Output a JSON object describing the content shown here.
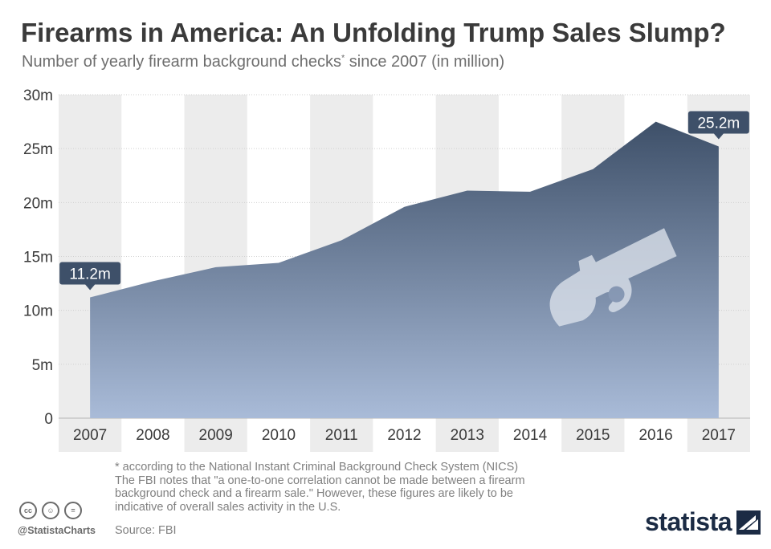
{
  "title": "Firearms in America: An Unfolding Trump Sales Slump?",
  "subtitle_main": "Number of yearly firearm background checks",
  "subtitle_star": "*",
  "subtitle_rest": " since 2007 (in million)",
  "chart_data": {
    "type": "area",
    "title": "Firearms in America: An Unfolding Trump Sales Slump?",
    "subtitle": "Number of yearly firearm background checks* since 2007 (in million)",
    "x": [
      "2007",
      "2008",
      "2009",
      "2010",
      "2011",
      "2012",
      "2013",
      "2014",
      "2015",
      "2016",
      "2017"
    ],
    "values": [
      11.2,
      12.7,
      14.0,
      14.4,
      16.5,
      19.6,
      21.1,
      21.0,
      23.1,
      27.5,
      25.2
    ],
    "ylim": [
      0,
      30
    ],
    "yticks": [
      0,
      5,
      10,
      15,
      20,
      25,
      30
    ],
    "ytick_labels": [
      "0",
      "5m",
      "10m",
      "15m",
      "20m",
      "25m",
      "30m"
    ],
    "annotations": [
      {
        "index": 0,
        "label": "11.2m"
      },
      {
        "index": 10,
        "label": "25.2m"
      }
    ],
    "grid": true,
    "colors": {
      "area_top": "#3e5069",
      "area_bottom": "#a9bbd8",
      "band": "#ececec",
      "label_bg": "#3e5069"
    }
  },
  "footnote": [
    "* according to the National Instant Criminal Background Check System (NICS)",
    "The FBI notes that \"a one-to-one correlation cannot be made between a firearm",
    "background check and a firearm sale.\" However, these figures are likely to be",
    "indicative of overall sales activity in the U.S."
  ],
  "source": "Source: FBI",
  "handle": "@StatistaCharts",
  "cc_icons": [
    {
      "name": "cc-icon",
      "glyph": "cc"
    },
    {
      "name": "by-icon",
      "glyph": "☺"
    },
    {
      "name": "nd-icon",
      "glyph": "="
    }
  ],
  "brand": "statista"
}
